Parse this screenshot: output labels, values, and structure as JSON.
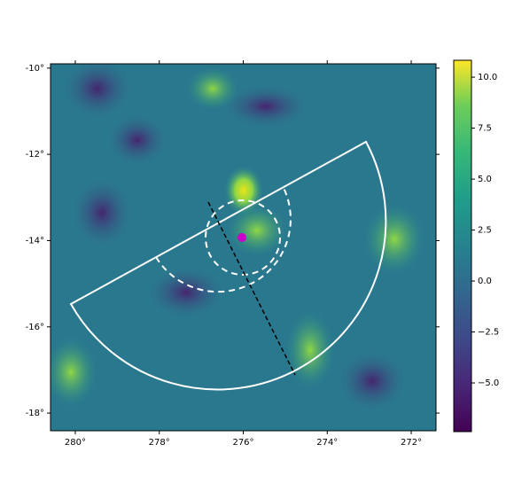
{
  "chart_data": {
    "type": "skymap",
    "xlim": [
      280.59,
      271.41
    ],
    "xticks": [
      {
        "value": 280,
        "label": "280°"
      },
      {
        "value": 278,
        "label": "278°"
      },
      {
        "value": 276,
        "label": "276°"
      },
      {
        "value": 274,
        "label": "274°"
      },
      {
        "value": 272,
        "label": "272°"
      }
    ],
    "ylim": [
      -18.41,
      -9.9
    ],
    "yticks": [
      {
        "value": -10,
        "label": "-10°"
      },
      {
        "value": -12,
        "label": "-12°"
      },
      {
        "value": -14,
        "label": "-14°"
      },
      {
        "value": -16,
        "label": "-16°"
      },
      {
        "value": -18,
        "label": "-18°"
      }
    ],
    "clim": [
      -7.39,
      10.83
    ],
    "cticks": [
      {
        "value": 10,
        "label": "10.0"
      },
      7.5,
      {
        "value": 5,
        "label": "5.0"
      },
      2.5,
      {
        "value": 0,
        "label": "0.0"
      },
      {
        "value": -2.5,
        "label": "−2.5"
      },
      {
        "value": -5,
        "label": "−5.0"
      }
    ],
    "colormap": "viridis"
  }
}
